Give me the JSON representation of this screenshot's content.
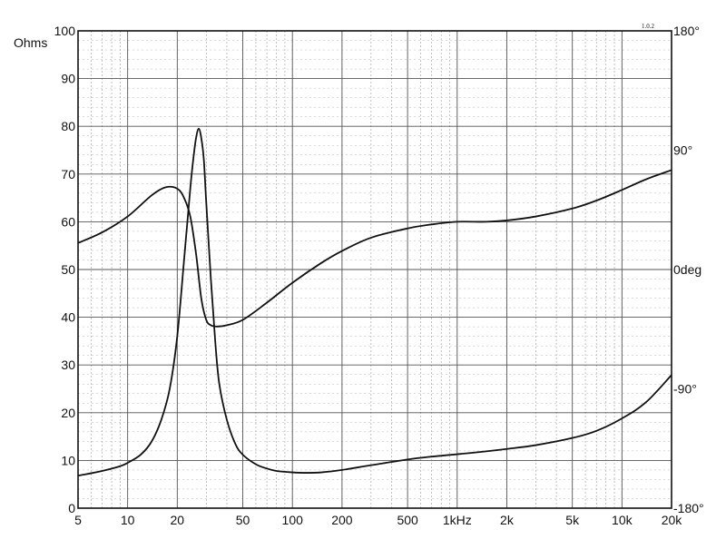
{
  "chart_data": {
    "type": "line",
    "title": "",
    "xlabel": "",
    "ylabel": "Ohms",
    "x_scale": "log",
    "xlim": [
      5,
      20000
    ],
    "ylim": [
      0,
      100
    ],
    "y2lim": [
      -180,
      180
    ],
    "grid": true,
    "badge_text": "1.0.2",
    "x_ticks": [
      {
        "value": 5,
        "label": "5"
      },
      {
        "value": 10,
        "label": "10"
      },
      {
        "value": 20,
        "label": "20"
      },
      {
        "value": 50,
        "label": "50"
      },
      {
        "value": 100,
        "label": "100"
      },
      {
        "value": 200,
        "label": "200"
      },
      {
        "value": 500,
        "label": "500"
      },
      {
        "value": 1000,
        "label": "1kHz"
      },
      {
        "value": 2000,
        "label": "2k"
      },
      {
        "value": 5000,
        "label": "5k"
      },
      {
        "value": 10000,
        "label": "10k"
      },
      {
        "value": 20000,
        "label": "20k"
      }
    ],
    "y_ticks": [
      {
        "value": 0,
        "label": "0"
      },
      {
        "value": 10,
        "label": "10"
      },
      {
        "value": 20,
        "label": "20"
      },
      {
        "value": 30,
        "label": "30"
      },
      {
        "value": 40,
        "label": "40"
      },
      {
        "value": 50,
        "label": "50"
      },
      {
        "value": 60,
        "label": "60"
      },
      {
        "value": 70,
        "label": "70"
      },
      {
        "value": 80,
        "label": "80"
      },
      {
        "value": 90,
        "label": "90"
      },
      {
        "value": 100,
        "label": "100"
      }
    ],
    "y2_ticks": [
      {
        "value": 180,
        "label": "180°"
      },
      {
        "value": 90,
        "label": "90°"
      },
      {
        "value": 0,
        "label": "0deg"
      },
      {
        "value": -90,
        "label": "-90°"
      },
      {
        "value": -180,
        "label": "-180°"
      }
    ],
    "series": [
      {
        "axis": "left",
        "color": "#111111",
        "x": [
          5,
          7,
          9,
          10,
          12,
          14,
          16,
          18,
          20,
          22,
          24,
          25,
          26,
          27,
          28,
          29,
          30,
          32,
          34,
          36,
          40,
          45,
          50,
          60,
          70,
          80,
          100,
          120,
          150,
          200,
          300,
          500,
          700,
          1000,
          1500,
          2000,
          3000,
          5000,
          7000,
          10000,
          14000,
          20000
        ],
        "y": [
          6.8,
          7.8,
          8.8,
          9.5,
          11.2,
          14.0,
          18.5,
          25.0,
          36.0,
          52.0,
          67.0,
          73.0,
          77.5,
          79.5,
          77.5,
          73.0,
          64.0,
          48.0,
          35.0,
          26.0,
          18.5,
          13.5,
          11.2,
          9.2,
          8.3,
          7.8,
          7.5,
          7.4,
          7.5,
          8.0,
          9.0,
          10.2,
          10.8,
          11.3,
          11.9,
          12.4,
          13.2,
          14.7,
          16.2,
          18.8,
          22.2,
          27.9
        ]
      },
      {
        "axis": "right",
        "color": "#111111",
        "x": [
          5,
          7,
          10,
          14,
          17,
          20,
          22,
          24,
          26,
          28,
          30,
          32,
          35,
          40,
          50,
          70,
          100,
          150,
          200,
          300,
          500,
          700,
          1000,
          1500,
          2000,
          3000,
          5000,
          7000,
          10000,
          14000,
          20000
        ],
        "y": [
          20,
          28,
          40,
          56,
          62,
          61,
          54,
          40,
          12,
          -22,
          -38,
          -42,
          -43,
          -42,
          -38,
          -25,
          -10,
          5,
          14,
          24,
          31,
          34,
          36,
          36,
          37,
          40,
          46,
          52,
          60,
          68,
          75
        ]
      }
    ]
  }
}
